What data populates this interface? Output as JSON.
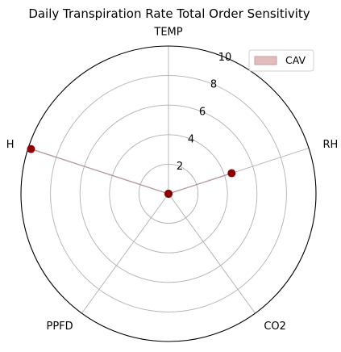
{
  "chart_data": {
    "type": "radar",
    "title": "Daily Transpiration Rate Total Order Sensitivity",
    "axes": [
      "TEMP",
      "RH",
      "CO2",
      "PPFD",
      "H"
    ],
    "rlim": [
      0,
      10
    ],
    "rticks": [
      2,
      4,
      6,
      8,
      10
    ],
    "grid": true,
    "legend_position": "top-right",
    "series": [
      {
        "name": "CAV",
        "values": [
          0.0,
          4.5,
          0.0,
          0.0,
          9.8
        ],
        "line_color": "#8b0000",
        "fill_color": "#c08080"
      }
    ]
  }
}
